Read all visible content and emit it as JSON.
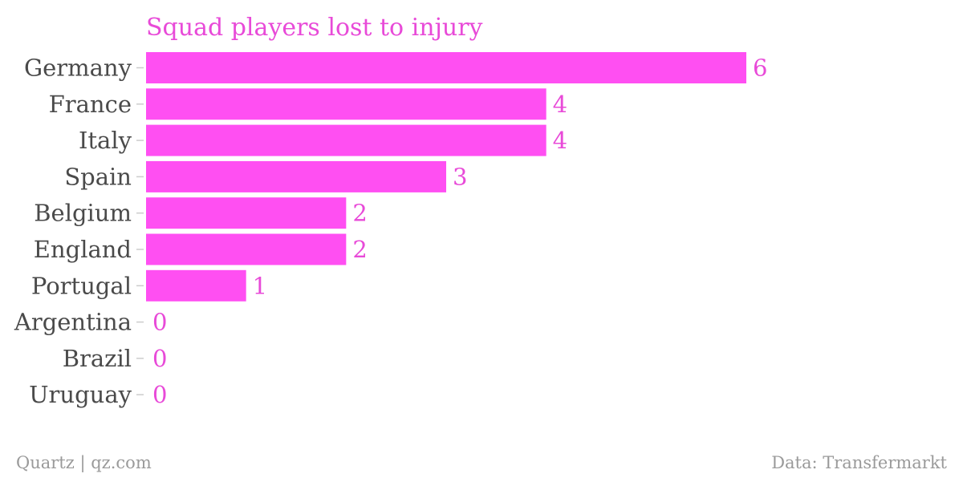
{
  "chart_data": {
    "type": "bar",
    "orientation": "horizontal",
    "title": "Squad players lost to injury",
    "categories": [
      "Germany",
      "France",
      "Italy",
      "Spain",
      "Belgium",
      "England",
      "Portugal",
      "Argentina",
      "Brazil",
      "Uruguay"
    ],
    "values": [
      6,
      4,
      4,
      3,
      2,
      2,
      1,
      0,
      0,
      0
    ],
    "xlabel": "",
    "ylabel": "",
    "xlim": [
      0,
      6
    ],
    "grid": false,
    "legend": "none",
    "data_labels": true
  },
  "footer": {
    "source_left": "Quartz | qz.com",
    "source_right": "Data: Transfermarkt"
  },
  "colors": {
    "bar": "#ff4ff2",
    "accent": "#e84ad8",
    "category_text": "#4a4a4a",
    "footer_text": "#9a9a9a",
    "tick": "#cccccc"
  }
}
